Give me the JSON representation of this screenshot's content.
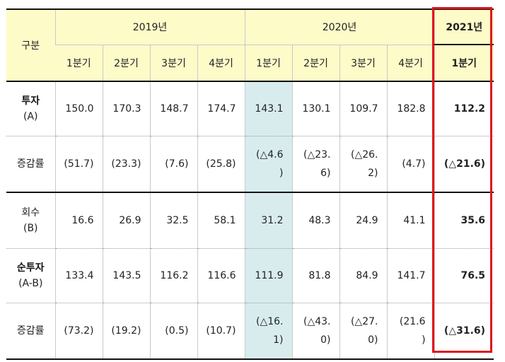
{
  "header": {
    "category": "구분",
    "year_2019": "2019년",
    "year_2020": "2020년",
    "year_2021": "2021년",
    "quarters_2019": [
      "1분기",
      "2분기",
      "3분기",
      "4분기"
    ],
    "quarters_2020": [
      "1분기",
      "2분기",
      "3분기",
      "4분기"
    ],
    "quarter_2021": "1분기"
  },
  "rows": [
    {
      "label_line1": "투자",
      "label_line2": "(A)",
      "cells_2019": [
        "150.0",
        "170.3",
        "148.7",
        "174.7"
      ],
      "cells_2020": [
        "143.1",
        "130.1",
        "109.7",
        "182.8"
      ],
      "cell_2021": "112.2"
    },
    {
      "label_line1": "증감률",
      "cells_2019": [
        "(51.7)",
        "(23.3)",
        "(7.6)",
        "(25.8)"
      ],
      "cells_2020_l1": [
        "(△4.6",
        "(△23.",
        "(△26.",
        "(4.7)"
      ],
      "cells_2020_l2": [
        ")",
        "6)",
        "2)",
        ""
      ],
      "cell_2021": "(△21.6)"
    },
    {
      "label_line1": "회수",
      "label_line2": "(B)",
      "cells_2019": [
        "16.6",
        "26.9",
        "32.5",
        "58.1"
      ],
      "cells_2020": [
        "31.2",
        "48.3",
        "24.9",
        "41.1"
      ],
      "cell_2021": "35.6"
    },
    {
      "label_line1": "순투자",
      "label_line2": "(A-B)",
      "cells_2019": [
        "133.4",
        "143.5",
        "116.2",
        "116.6"
      ],
      "cells_2020": [
        "111.9",
        "81.8",
        "84.9",
        "141.7"
      ],
      "cell_2021": "76.5"
    },
    {
      "label_line1": "증감률",
      "cells_2019": [
        "(73.2)",
        "(19.2)",
        "(0.5)",
        "(10.7)"
      ],
      "cells_2020_l1": [
        "(△16.",
        "(△43.",
        "(△27.",
        "(21.6"
      ],
      "cells_2020_l2": [
        "1)",
        "0)",
        "0)",
        ")"
      ],
      "cell_2021": "(△31.6)"
    }
  ]
}
